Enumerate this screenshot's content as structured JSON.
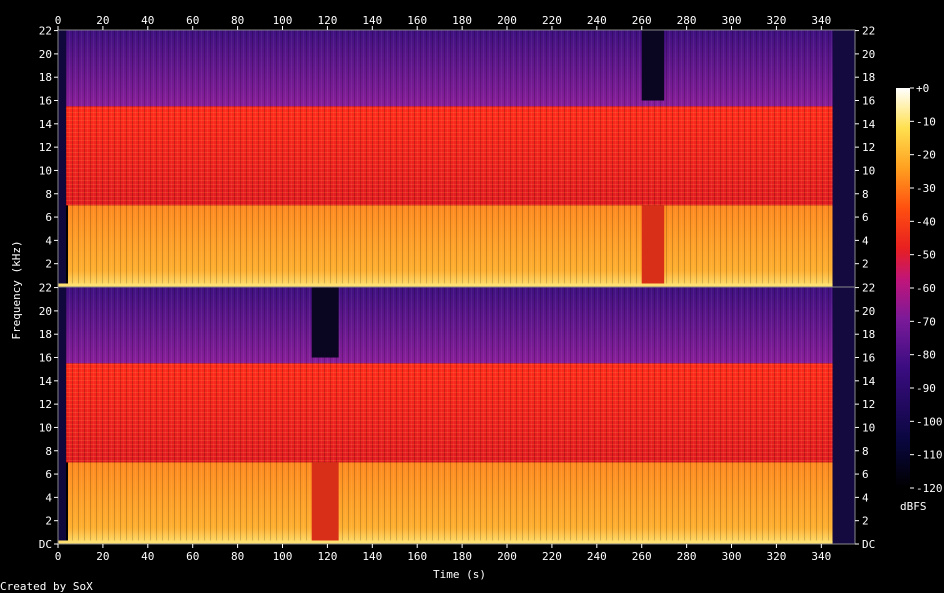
{
  "chart_data": {
    "type": "heatmap",
    "title": "",
    "xlabel": "Time (s)",
    "ylabel": "Frequency (kHz)",
    "xlim": [
      0,
      355
    ],
    "ylim": [
      0,
      22.05
    ],
    "x_ticks": [
      0,
      20,
      40,
      60,
      80,
      100,
      120,
      140,
      160,
      180,
      200,
      220,
      240,
      260,
      280,
      300,
      320,
      340
    ],
    "channels": [
      {
        "y_ticks": [
          "22",
          "20",
          "18",
          "16",
          "14",
          "12",
          "10",
          "8",
          "6",
          "4",
          "2"
        ]
      },
      {
        "y_ticks": [
          "22",
          "20",
          "18",
          "16",
          "14",
          "12",
          "10",
          "8",
          "6",
          "4",
          "2",
          "DC"
        ]
      }
    ],
    "colorbar": {
      "label": "dBFS",
      "range": [
        -120,
        0
      ],
      "ticks": [
        "+0",
        "-10",
        "-20",
        "-30",
        "-40",
        "-50",
        "-60",
        "-70",
        "-80",
        "-90",
        "-100",
        "-110",
        "-120"
      ]
    },
    "footer": "Created by SoX"
  }
}
